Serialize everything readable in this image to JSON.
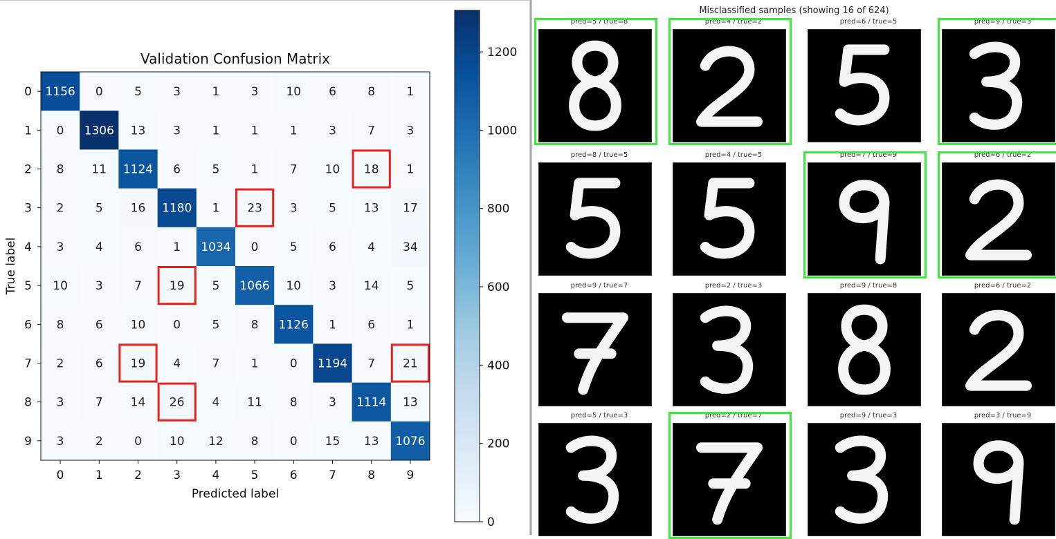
{
  "chart_data": {
    "type": "heatmap",
    "title": "Validation Confusion Matrix",
    "xlabel": "Predicted label",
    "ylabel": "True label",
    "x_ticks": [
      "0",
      "1",
      "2",
      "3",
      "4",
      "5",
      "6",
      "7",
      "8",
      "9"
    ],
    "y_ticks": [
      "0",
      "1",
      "2",
      "3",
      "4",
      "5",
      "6",
      "7",
      "8",
      "9"
    ],
    "matrix": [
      [
        1156,
        0,
        5,
        3,
        1,
        3,
        10,
        6,
        8,
        1
      ],
      [
        0,
        1306,
        13,
        3,
        1,
        1,
        1,
        3,
        7,
        3
      ],
      [
        8,
        11,
        1124,
        6,
        5,
        1,
        7,
        10,
        18,
        1
      ],
      [
        2,
        5,
        16,
        1180,
        1,
        23,
        3,
        5,
        13,
        17
      ],
      [
        3,
        4,
        6,
        1,
        1034,
        0,
        5,
        6,
        4,
        34
      ],
      [
        10,
        3,
        7,
        19,
        5,
        1066,
        10,
        3,
        14,
        5
      ],
      [
        8,
        6,
        10,
        0,
        5,
        8,
        1126,
        1,
        6,
        1
      ],
      [
        2,
        6,
        19,
        4,
        7,
        1,
        0,
        1194,
        7,
        21
      ],
      [
        3,
        7,
        14,
        26,
        4,
        11,
        8,
        3,
        1114,
        13
      ],
      [
        3,
        2,
        0,
        10,
        12,
        8,
        0,
        15,
        13,
        1076
      ]
    ],
    "highlighted_cells": [
      [
        2,
        8
      ],
      [
        3,
        5
      ],
      [
        5,
        3
      ],
      [
        7,
        2
      ],
      [
        7,
        9
      ],
      [
        8,
        3
      ]
    ],
    "colorbar": {
      "min": 0,
      "max": 1306,
      "ticks": [
        0,
        200,
        400,
        600,
        800,
        1000,
        1200
      ]
    },
    "colormap": "Blues",
    "highlight_color": "#e8201e"
  },
  "gallery": {
    "title": "Misclassified samples (showing 16 of 624)",
    "highlight_color": "#3ee93e",
    "samples": [
      {
        "label": "pred=5 / true=8",
        "highlighted": true,
        "digit": "8"
      },
      {
        "label": "pred=4 / true=2",
        "highlighted": true,
        "digit": "2"
      },
      {
        "label": "pred=6 / true=5",
        "highlighted": false,
        "digit": "5"
      },
      {
        "label": "pred=9 / true=3",
        "highlighted": true,
        "digit": "3"
      },
      {
        "label": "pred=8 / true=5",
        "highlighted": false,
        "digit": "5"
      },
      {
        "label": "pred=4 / true=5",
        "highlighted": false,
        "digit": "5"
      },
      {
        "label": "pred=7 / true=9",
        "highlighted": true,
        "digit": "9"
      },
      {
        "label": "pred=6 / true=2",
        "highlighted": true,
        "digit": "2"
      },
      {
        "label": "pred=9 / true=7",
        "highlighted": false,
        "digit": "7"
      },
      {
        "label": "pred=2 / true=3",
        "highlighted": false,
        "digit": "3"
      },
      {
        "label": "pred=9 / true=8",
        "highlighted": false,
        "digit": "8"
      },
      {
        "label": "pred=6 / true=2",
        "highlighted": false,
        "digit": "2"
      },
      {
        "label": "pred=5 / true=3",
        "highlighted": false,
        "digit": "3"
      },
      {
        "label": "pred=2 / true=7",
        "highlighted": true,
        "digit": "7"
      },
      {
        "label": "pred=9 / true=3",
        "highlighted": false,
        "digit": "3"
      },
      {
        "label": "pred=3 / true=9",
        "highlighted": false,
        "digit": "9"
      }
    ]
  }
}
